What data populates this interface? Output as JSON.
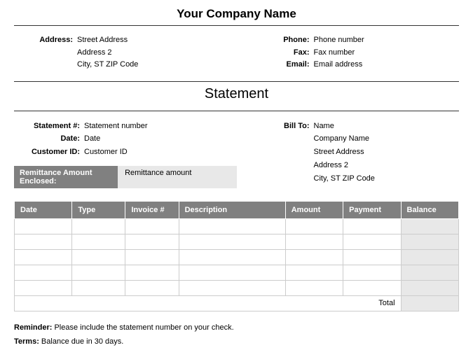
{
  "header": {
    "company_name": "Your Company Name",
    "address_label": "Address:",
    "address_line1": "Street Address",
    "address_line2": "Address 2",
    "address_line3": "City, ST  ZIP Code",
    "phone_label": "Phone:",
    "phone_value": "Phone number",
    "fax_label": "Fax:",
    "fax_value": "Fax number",
    "email_label": "Email:",
    "email_value": "Email address"
  },
  "title": "Statement",
  "meta": {
    "stmt_num_label": "Statement #:",
    "stmt_num_value": "Statement number",
    "date_label": "Date:",
    "date_value": "Date",
    "cust_id_label": "Customer ID:",
    "cust_id_value": "Customer ID",
    "billto_label": "Bill To:",
    "billto_name": "Name",
    "billto_company": "Company Name",
    "billto_addr1": "Street Address",
    "billto_addr2": "Address 2",
    "billto_addr3": "City, ST  ZIP Code"
  },
  "remittance": {
    "label": "Remittance Amount Enclosed:",
    "value": "Remittance amount"
  },
  "table": {
    "columns": [
      "Date",
      "Type",
      "Invoice #",
      "Description",
      "Amount",
      "Payment",
      "Balance"
    ],
    "row_count": 5,
    "total_label": "Total"
  },
  "footer": {
    "reminder_label": "Reminder:",
    "reminder_text": " Please include the statement number on your check.",
    "terms_label": "Terms:",
    "terms_text": " Balance due in 30 days."
  },
  "styling": {
    "header_bg": "#808080",
    "header_fg": "#ffffff",
    "cell_border": "#cccccc",
    "balance_bg": "#e8e8e8",
    "page_bg": "#ffffff",
    "text_color": "#000000"
  }
}
